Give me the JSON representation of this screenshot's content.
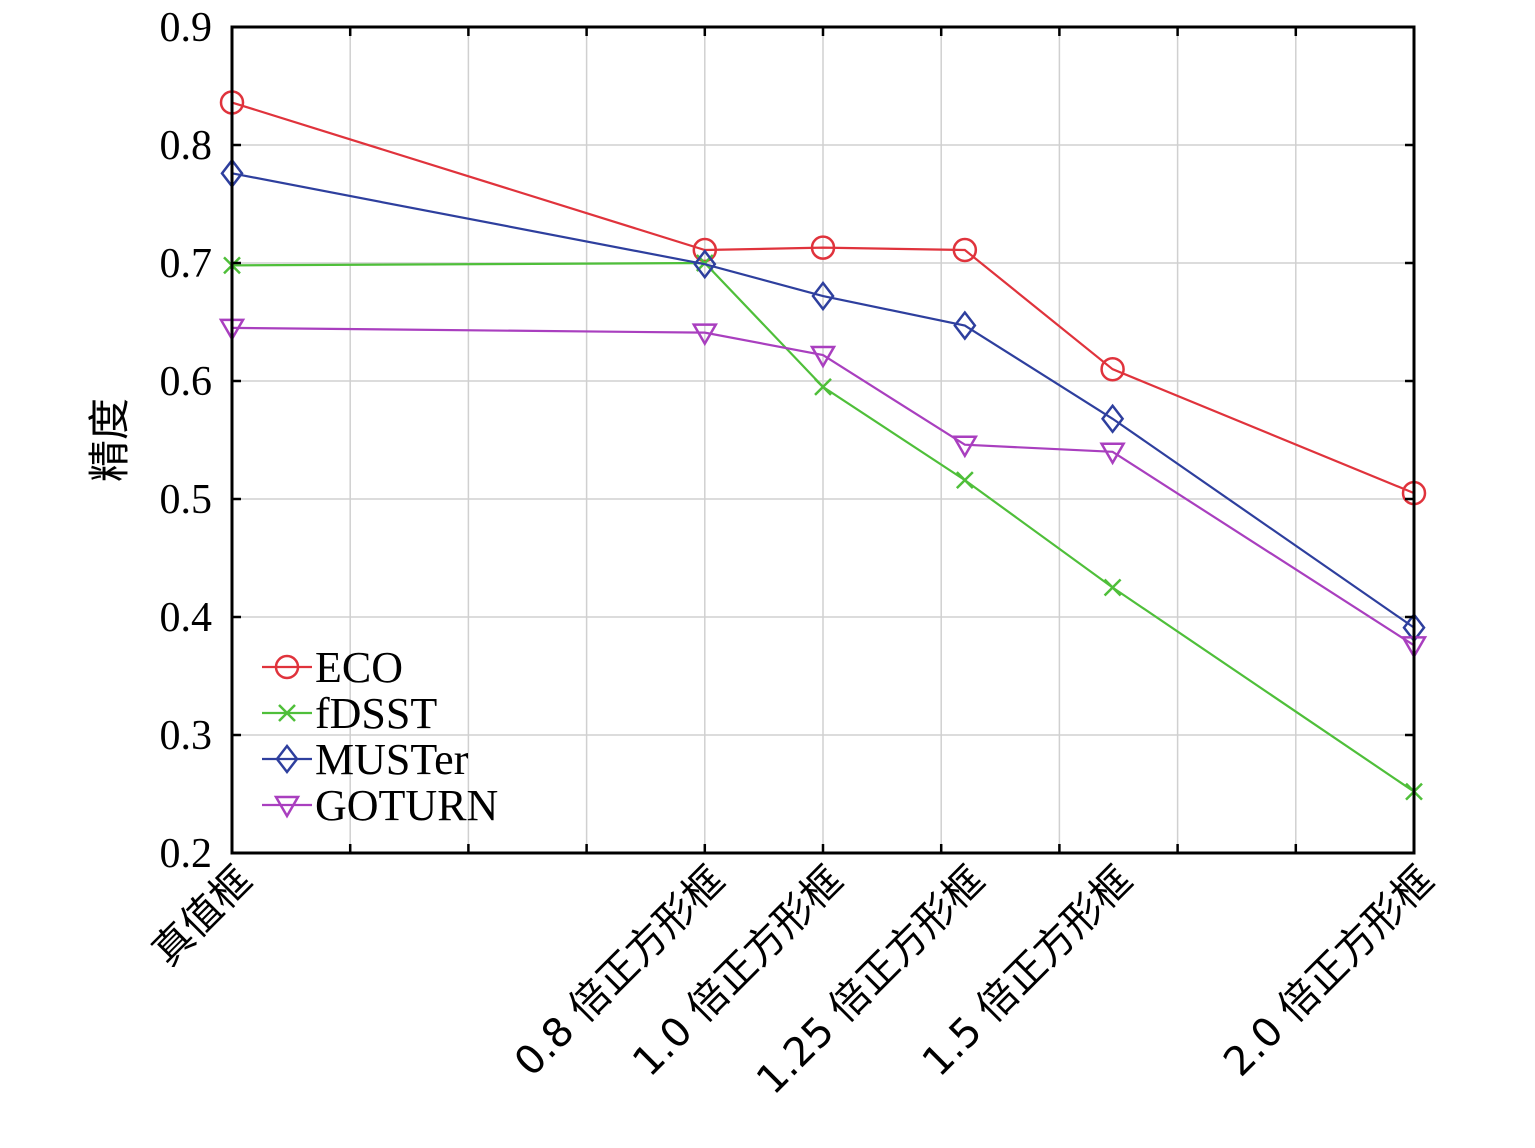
{
  "chart_data": {
    "type": "line",
    "title": "",
    "xlabel": "",
    "ylabel": "精度",
    "categories": [
      "真值框",
      "0.8 倍正方形框",
      "1.0 倍正方形框",
      "1.25 倍正方形框",
      "1.5 倍正方形框",
      "2.0 倍正方形框"
    ],
    "category_positions": [
      0,
      4,
      5,
      6.2,
      7.45,
      10
    ],
    "x_range": [
      0,
      10
    ],
    "ylim": [
      0.2,
      0.9
    ],
    "yticks": [
      0.2,
      0.3,
      0.4,
      0.5,
      0.6,
      0.7,
      0.8,
      0.9
    ],
    "ytick_labels": [
      "0.2",
      "0.3",
      "0.4",
      "0.5",
      "0.6",
      "0.7",
      "0.8",
      "0.9"
    ],
    "grid": true,
    "legend_position": "lower-left",
    "series": [
      {
        "name": "ECO",
        "color": "#e0333c",
        "marker": "circle",
        "values": [
          0.836,
          0.711,
          0.713,
          0.711,
          0.61,
          0.505
        ]
      },
      {
        "name": "fDSST",
        "color": "#4fbf3a",
        "marker": "x",
        "values": [
          0.698,
          0.7,
          0.595,
          0.516,
          0.425,
          0.252
        ]
      },
      {
        "name": "MUSTer",
        "color": "#2e3f9e",
        "marker": "diamond",
        "values": [
          0.776,
          0.699,
          0.672,
          0.647,
          0.568,
          0.391
        ]
      },
      {
        "name": "GOTURN",
        "color": "#a93fbf",
        "marker": "triangle-down",
        "values": [
          0.645,
          0.641,
          0.622,
          0.546,
          0.54,
          0.376
        ]
      }
    ]
  }
}
